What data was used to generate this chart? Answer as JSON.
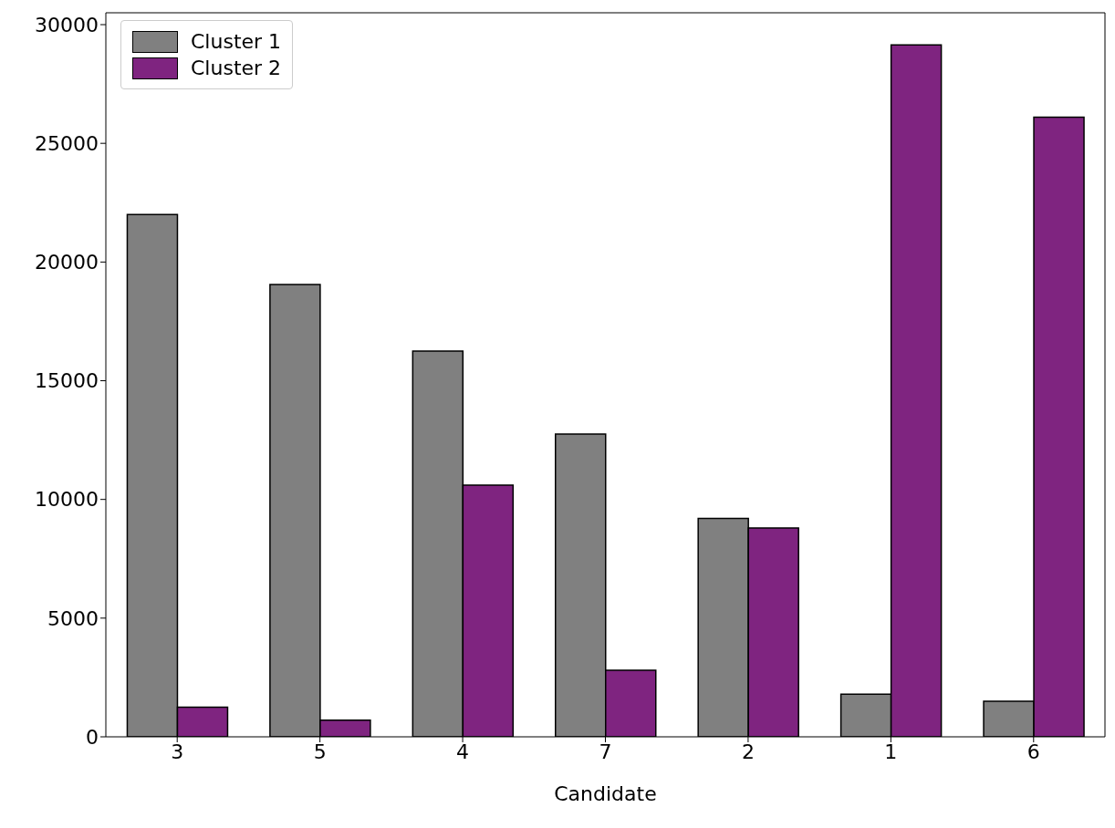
{
  "chart_data": {
    "type": "bar",
    "xlabel": "Candidate",
    "categories": [
      "3",
      "5",
      "4",
      "7",
      "2",
      "1",
      "6"
    ],
    "series": [
      {
        "name": "Cluster 1",
        "color": "#808080",
        "values": [
          22000,
          19050,
          16250,
          12750,
          9200,
          1800,
          1500
        ]
      },
      {
        "name": "Cluster 2",
        "color": "#7f2480",
        "values": [
          1250,
          700,
          10600,
          2800,
          8800,
          29150,
          26100
        ]
      }
    ],
    "ylim": [
      0,
      30500
    ],
    "yticks": [
      0,
      5000,
      10000,
      15000,
      20000,
      25000,
      30000
    ],
    "grid": false,
    "legend": "top left"
  }
}
